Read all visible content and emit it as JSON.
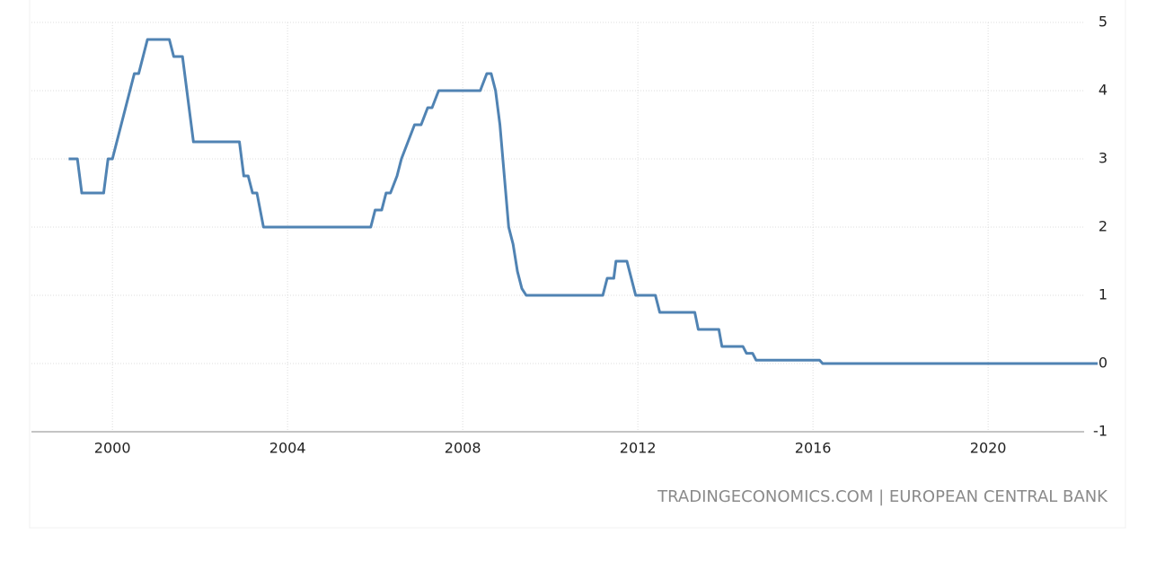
{
  "chart_data": {
    "type": "line",
    "source": "TRADINGECONOMICS.COM | EUROPEAN CENTRAL BANK",
    "x": [
      1999.0,
      1999.2,
      1999.3,
      1999.8,
      1999.9,
      2000.0,
      2000.1,
      2000.2,
      2000.3,
      2000.4,
      2000.5,
      2000.6,
      2000.7,
      2000.8,
      2001.3,
      2001.4,
      2001.6,
      2001.65,
      2001.75,
      2001.85,
      2002.9,
      2003.0,
      2003.1,
      2003.2,
      2003.3,
      2003.45,
      2005.9,
      2006.0,
      2006.15,
      2006.25,
      2006.35,
      2006.5,
      2006.6,
      2006.75,
      2006.9,
      2007.05,
      2007.2,
      2007.3,
      2007.45,
      2008.4,
      2008.55,
      2008.65,
      2008.75,
      2008.85,
      2008.95,
      2009.05,
      2009.15,
      2009.25,
      2009.35,
      2009.45,
      2011.2,
      2011.3,
      2011.45,
      2011.5,
      2011.75,
      2011.85,
      2011.95,
      2012.4,
      2012.5,
      2013.3,
      2013.38,
      2013.85,
      2013.92,
      2014.4,
      2014.48,
      2014.62,
      2014.7,
      2016.15,
      2016.22,
      2022.5
    ],
    "series": [
      {
        "color": "#5083b3",
        "values": [
          3,
          3,
          2.5,
          2.5,
          3,
          3,
          3.25,
          3.5,
          3.75,
          4,
          4.25,
          4.25,
          4.5,
          4.75,
          4.75,
          4.5,
          4.5,
          4.25,
          3.75,
          3.25,
          3.25,
          2.75,
          2.75,
          2.5,
          2.5,
          2,
          2,
          2.25,
          2.25,
          2.5,
          2.5,
          2.75,
          3,
          3.25,
          3.5,
          3.5,
          3.75,
          3.75,
          4,
          4,
          4.25,
          4.25,
          4,
          3.5,
          2.75,
          2,
          1.75,
          1.35,
          1.1,
          1,
          1,
          1.25,
          1.25,
          1.5,
          1.5,
          1.25,
          1,
          1,
          0.75,
          0.75,
          0.5,
          0.5,
          0.25,
          0.25,
          0.15,
          0.15,
          0.05,
          0.05,
          0,
          0
        ]
      }
    ],
    "xlim": [
      1998.93,
      2022.5
    ],
    "xticks": [
      2000,
      2004,
      2008,
      2012,
      2016,
      2020
    ],
    "ylim": [
      -1,
      5
    ],
    "yticks": [
      -1,
      0,
      1,
      2,
      3,
      4,
      5
    ],
    "grid": true
  }
}
